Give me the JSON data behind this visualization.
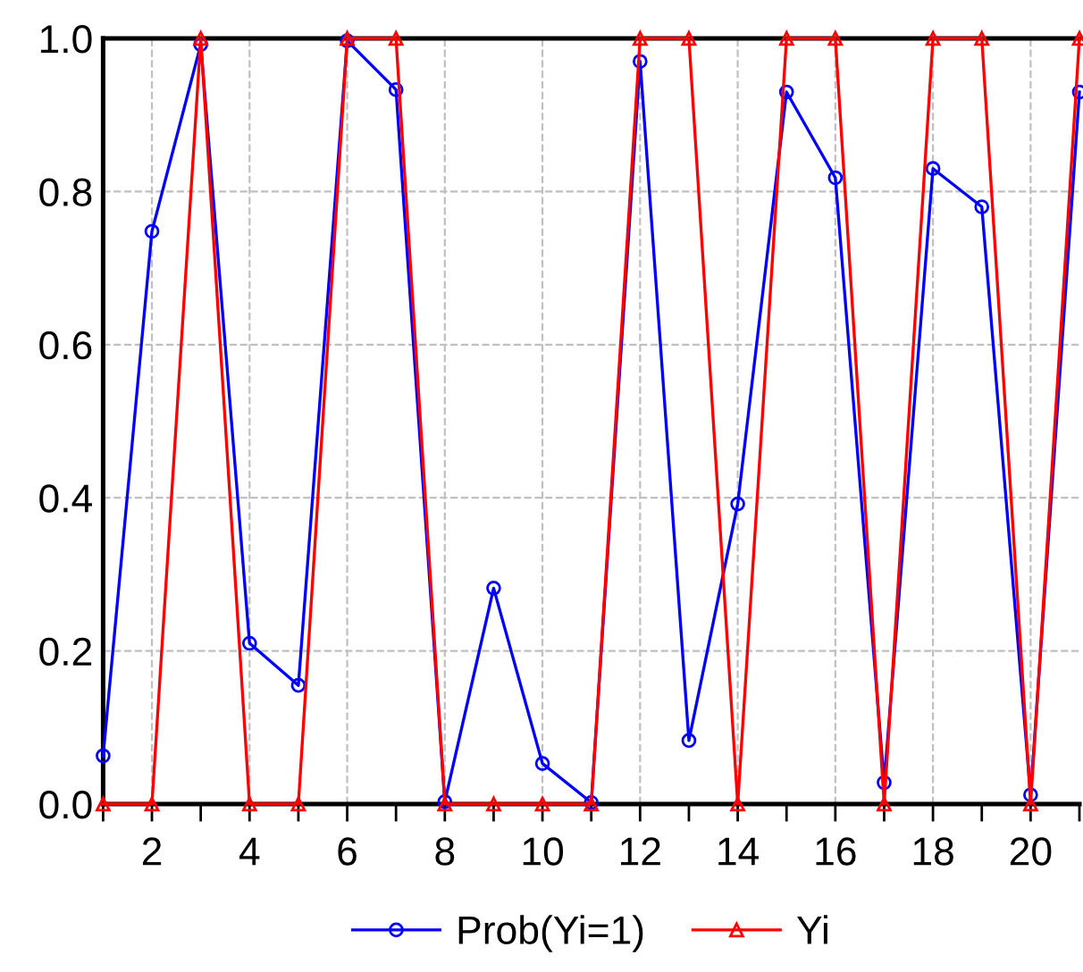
{
  "chart_data": {
    "type": "line",
    "x": [
      1,
      2,
      3,
      4,
      5,
      6,
      7,
      8,
      9,
      10,
      11,
      12,
      13,
      14,
      15,
      16,
      17,
      18,
      19,
      20,
      21
    ],
    "series": [
      {
        "name": "Prob(Yi=1)",
        "color": "#0000ff",
        "marker": "circle",
        "values": [
          0.063,
          0.748,
          0.992,
          0.21,
          0.155,
          0.997,
          0.933,
          0.003,
          0.282,
          0.053,
          0.002,
          0.97,
          0.083,
          0.392,
          0.93,
          0.818,
          0.028,
          0.83,
          0.78,
          0.012,
          0.93
        ]
      },
      {
        "name": "Yi",
        "color": "#ff0000",
        "marker": "triangle",
        "values": [
          0,
          0,
          1,
          0,
          0,
          1,
          1,
          0,
          0,
          0,
          0,
          1,
          1,
          0,
          1,
          1,
          0,
          1,
          1,
          0,
          1
        ]
      }
    ],
    "xlim": [
      1,
      21
    ],
    "xticks": [
      {
        "value": 1,
        "label": null
      },
      2,
      {
        "value": 3,
        "label": null
      },
      4,
      {
        "value": 5,
        "label": null
      },
      6,
      {
        "value": 7,
        "label": null
      },
      8,
      {
        "value": 9,
        "label": null
      },
      10,
      {
        "value": 11,
        "label": null
      },
      12,
      {
        "value": 13,
        "label": null
      },
      14,
      {
        "value": 15,
        "label": null
      },
      16,
      {
        "value": 17,
        "label": null
      },
      18,
      {
        "value": 19,
        "label": null
      },
      20,
      {
        "value": 21,
        "label": null
      }
    ],
    "ylim": [
      0,
      1
    ],
    "yticks": [
      {
        "value": 0,
        "label": "0.0"
      },
      {
        "value": 0.2,
        "label": "0.2"
      },
      {
        "value": 0.4,
        "label": "0.4"
      },
      {
        "value": 0.6,
        "label": "0.6"
      },
      {
        "value": 0.8,
        "label": "0.8"
      },
      {
        "value": 1,
        "label": "1.0"
      }
    ],
    "grid": true,
    "legend": "bottom",
    "line_style": "solid"
  }
}
